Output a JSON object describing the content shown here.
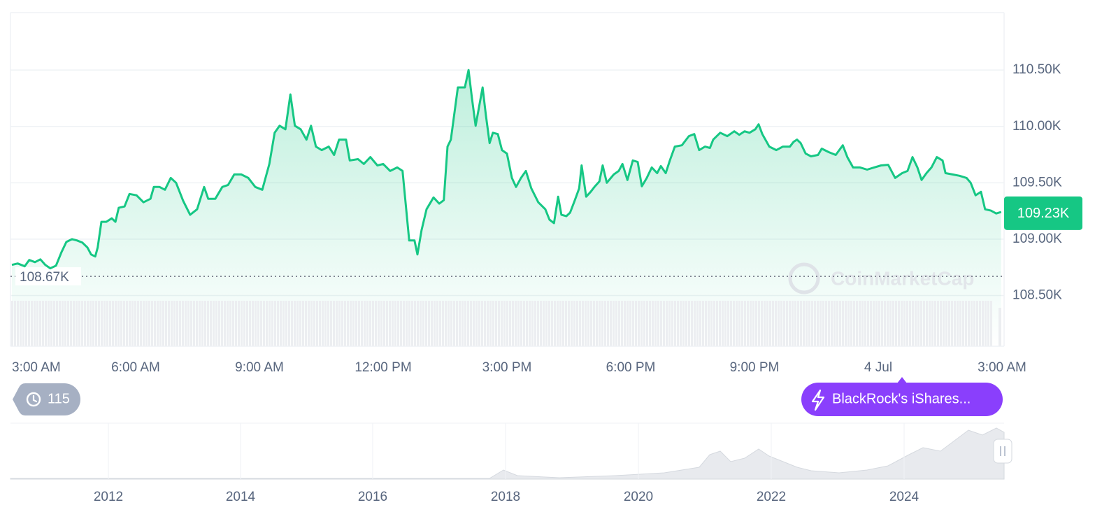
{
  "chart_data": {
    "type": "line",
    "color": "#16c784",
    "x": [
      0,
      0.14,
      0.31,
      0.42,
      0.56,
      0.69,
      0.81,
      0.93,
      1.07,
      1.2,
      1.32,
      1.46,
      1.58,
      1.71,
      1.83,
      1.92,
      2.02,
      2.08,
      2.17,
      2.29,
      2.42,
      2.51,
      2.59,
      2.73,
      2.85,
      3.02,
      3.19,
      3.36,
      3.44,
      3.58,
      3.71,
      3.85,
      3.98,
      4.15,
      4.32,
      4.49,
      4.66,
      4.76,
      4.93,
      5.1,
      5.24,
      5.39,
      5.56,
      5.73,
      5.9,
      6.07,
      6.24,
      6.37,
      6.49,
      6.63,
      6.75,
      6.86,
      7,
      7.14,
      7.25,
      7.37,
      7.51,
      7.68,
      7.81,
      7.93,
      8.1,
      8.19,
      8.39,
      8.53,
      8.69,
      8.86,
      9,
      9.17,
      9.34,
      9.47,
      9.63,
      9.76,
      9.83,
      9.93,
      10.05,
      10.22,
      10.36,
      10.47,
      10.56,
      10.64,
      10.81,
      10.98,
      11.07,
      11.15,
      11.24,
      11.41,
      11.49,
      11.58,
      11.66,
      11.78,
      11.88,
      12,
      12.12,
      12.22,
      12.34,
      12.46,
      12.59,
      12.76,
      12.93,
      13.03,
      13.14,
      13.24,
      13.32,
      13.44,
      13.53,
      13.64,
      13.75,
      13.81,
      13.92,
      14.03,
      14.12,
      14.24,
      14.32,
      14.42,
      14.59,
      14.71,
      14.8,
      14.92,
      15.05,
      15.17,
      15.27,
      15.39,
      15.51,
      15.64,
      15.73,
      15.85,
      15.95,
      16.07,
      16.24,
      16.41,
      16.54,
      16.66,
      16.8,
      16.92,
      17,
      17.17,
      17.34,
      17.51,
      17.63,
      17.76,
      17.88,
      18.02,
      18.1,
      18.19,
      18.36,
      18.53,
      18.69,
      18.86,
      18.95,
      19.03,
      19.12,
      19.24,
      19.37,
      19.54,
      19.63,
      19.8,
      19.97,
      20.14,
      20.25,
      20.39,
      20.56,
      20.73,
      20.9,
      21.07,
      21.24,
      21.41,
      21.58,
      21.71,
      21.83,
      21.95,
      22.05,
      22.17,
      22.29,
      22.42,
      22.56,
      22.63,
      22.8,
      22.97,
      23.14,
      23.24,
      23.36,
      23.49,
      23.59,
      23.73,
      23.86,
      23.98
    ],
    "values": [
      108772,
      108784,
      108759,
      108815,
      108796,
      108821,
      108772,
      108741,
      108765,
      108883,
      108975,
      109000,
      108988,
      108969,
      108926,
      108864,
      108846,
      108926,
      109154,
      109154,
      109185,
      109154,
      109278,
      109290,
      109401,
      109389,
      109327,
      109358,
      109463,
      109463,
      109438,
      109543,
      109500,
      109340,
      109216,
      109265,
      109463,
      109358,
      109358,
      109463,
      109481,
      109574,
      109574,
      109543,
      109463,
      109438,
      109667,
      109944,
      110006,
      109975,
      110284,
      110006,
      109975,
      109883,
      110006,
      109821,
      109790,
      109821,
      109747,
      109883,
      109883,
      109698,
      109710,
      109667,
      109728,
      109654,
      109667,
      109605,
      109636,
      109605,
      108988,
      108988,
      108864,
      109080,
      109265,
      109370,
      109315,
      109346,
      109821,
      109883,
      110346,
      110346,
      110500,
      110253,
      110006,
      110346,
      110099,
      109852,
      109944,
      109932,
      109790,
      109759,
      109543,
      109463,
      109543,
      109605,
      109451,
      109327,
      109265,
      109173,
      109142,
      109377,
      109216,
      109204,
      109235,
      109340,
      109451,
      109654,
      109377,
      109420,
      109463,
      109512,
      109654,
      109500,
      109574,
      109605,
      109667,
      109525,
      109698,
      109685,
      109469,
      109543,
      109636,
      109586,
      109648,
      109586,
      109698,
      109821,
      109833,
      109914,
      109932,
      109790,
      109821,
      109809,
      109883,
      109944,
      109914,
      109957,
      109926,
      109957,
      109944,
      109975,
      110019,
      109932,
      109821,
      109790,
      109821,
      109821,
      109864,
      109883,
      109852,
      109759,
      109735,
      109747,
      109803,
      109772,
      109747,
      109833,
      109728,
      109636,
      109636,
      109617,
      109636,
      109654,
      109660,
      109543,
      109586,
      109605,
      109728,
      109636,
      109525,
      109586,
      109636,
      109728,
      109698,
      109586,
      109574,
      109562,
      109543,
      109500,
      109389,
      109420,
      109265,
      109253,
      109228,
      109241
    ],
    "xlim": [
      0,
      24
    ],
    "xticks": [
      {
        "value": 0,
        "label": "3:00 AM"
      },
      {
        "value": 3,
        "label": "6:00 AM"
      },
      {
        "value": 6,
        "label": "9:00 AM"
      },
      {
        "value": 9,
        "label": "12:00 PM"
      },
      {
        "value": 12,
        "label": "3:00 PM"
      },
      {
        "value": 15,
        "label": "6:00 PM"
      },
      {
        "value": 18,
        "label": "9:00 PM"
      },
      {
        "value": 21,
        "label": "4 Jul"
      },
      {
        "value": 24,
        "label": "3:00 AM"
      }
    ],
    "ylim": [
      108050,
      111010
    ],
    "yticks": [
      {
        "value": 108500,
        "label": "108.50K"
      },
      {
        "value": 109000,
        "label": "109.00K"
      },
      {
        "value": 109500,
        "label": "109.50K"
      },
      {
        "value": 110000,
        "label": "110.00K"
      },
      {
        "value": 110500,
        "label": "110.50K"
      }
    ],
    "grid": true,
    "last_price": {
      "value": 109230,
      "label": "109.23K"
    },
    "reference_line": {
      "value": 108670,
      "label": "108.67K"
    },
    "watermark": "CoinMarketCap",
    "history_count": 115,
    "news_button": "BlackRock's iShares...",
    "navigator": {
      "year_labels": [
        "2012",
        "2014",
        "2016",
        "2018",
        "2020",
        "2022",
        "2024"
      ]
    }
  }
}
